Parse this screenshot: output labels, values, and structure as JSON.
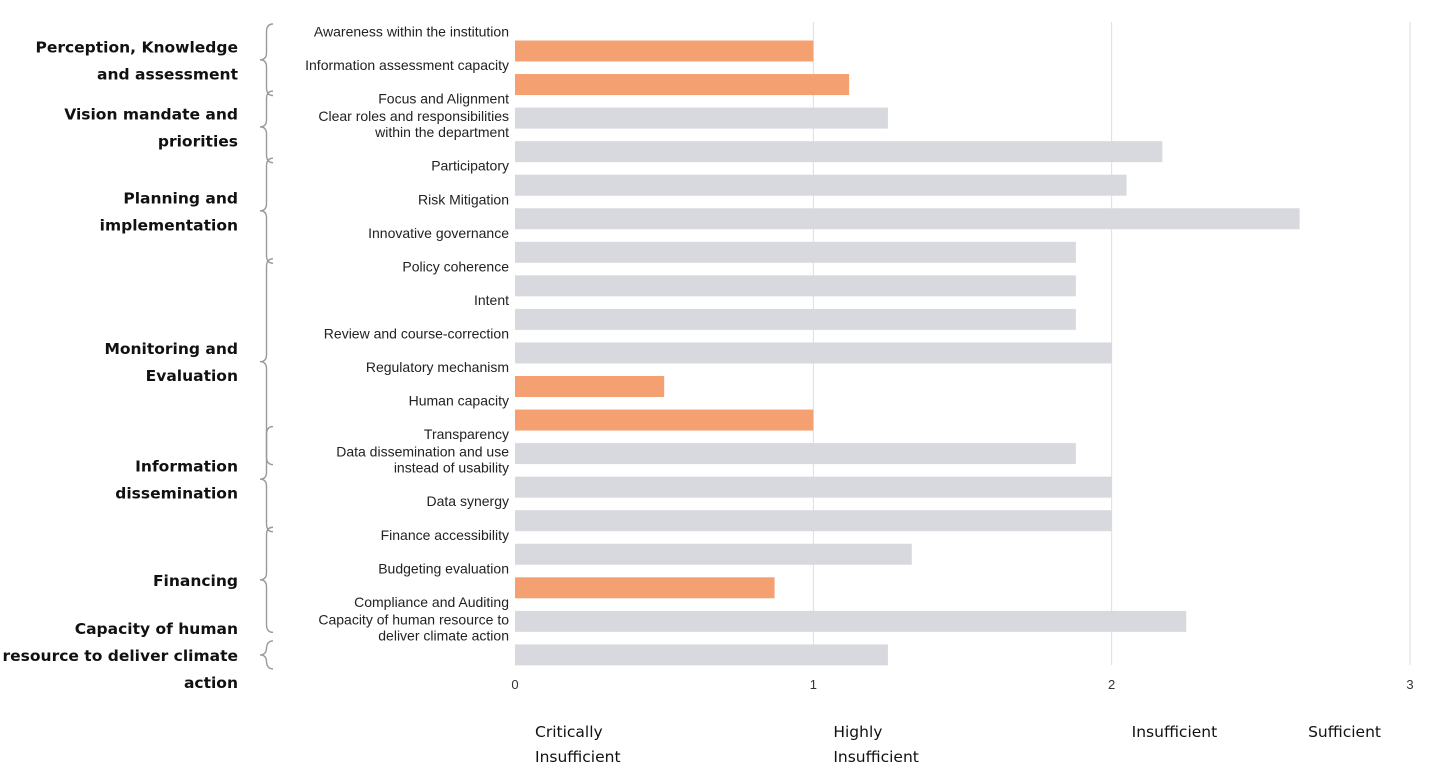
{
  "chart_data": {
    "type": "bar",
    "orientation": "horizontal",
    "xlim": [
      0,
      3
    ],
    "x_ticks": [
      "0",
      "1",
      "2",
      "3"
    ],
    "grid": "vertical",
    "colors": {
      "highlight": "#f4a070",
      "normal": "#d8d9de",
      "gridline": "#dddddd",
      "brace": "#9a9a9a"
    },
    "groups": [
      {
        "label": [
          "Perception, Knowledge",
          "and assessment"
        ],
        "first": 0,
        "last": 1
      },
      {
        "label": [
          "Vision mandate and",
          "priorities"
        ],
        "first": 2,
        "last": 3
      },
      {
        "label": [
          "Planning and",
          "implementation"
        ],
        "first": 4,
        "last": 6
      },
      {
        "label": [
          "Monitoring and",
          "Evaluation"
        ],
        "first": 7,
        "last": 12
      },
      {
        "label": [
          "Information",
          "dissemination"
        ],
        "first": 12,
        "last": 14
      },
      {
        "label": [
          "Financing"
        ],
        "first": 15,
        "last": 17
      },
      {
        "label": [
          "Capacity of human",
          "resource to deliver climate",
          "action"
        ],
        "first": 18,
        "last": 18
      }
    ],
    "categories": [
      {
        "label": [
          "Awareness within the institution"
        ],
        "value": 1.0,
        "highlight": true
      },
      {
        "label": [
          "Information assessment capacity"
        ],
        "value": 1.12,
        "highlight": true
      },
      {
        "label": [
          "Focus and Alignment"
        ],
        "value": 1.25,
        "highlight": false
      },
      {
        "label": [
          "Clear roles and responsibilities",
          "within the department"
        ],
        "value": 2.17,
        "highlight": false
      },
      {
        "label": [
          "Participatory"
        ],
        "value": 2.05,
        "highlight": false
      },
      {
        "label": [
          "Risk Mitigation"
        ],
        "value": 2.63,
        "highlight": false
      },
      {
        "label": [
          "Innovative governance"
        ],
        "value": 1.88,
        "highlight": false
      },
      {
        "label": [
          "Policy coherence"
        ],
        "value": 1.88,
        "highlight": false
      },
      {
        "label": [
          "Intent"
        ],
        "value": 1.88,
        "highlight": false
      },
      {
        "label": [
          "Review and course-correction"
        ],
        "value": 2.0,
        "highlight": false
      },
      {
        "label": [
          "Regulatory mechanism"
        ],
        "value": 0.5,
        "highlight": true
      },
      {
        "label": [
          "Human capacity"
        ],
        "value": 1.0,
        "highlight": true
      },
      {
        "label": [
          "Transparency"
        ],
        "value": 1.88,
        "highlight": false
      },
      {
        "label": [
          "Data dissemination and use",
          "instead of usability"
        ],
        "value": 2.0,
        "highlight": false
      },
      {
        "label": [
          "Data synergy"
        ],
        "value": 2.0,
        "highlight": false
      },
      {
        "label": [
          "Finance accessibility"
        ],
        "value": 1.33,
        "highlight": false
      },
      {
        "label": [
          "Budgeting evaluation"
        ],
        "value": 0.87,
        "highlight": true
      },
      {
        "label": [
          "Compliance and Auditing"
        ],
        "value": 2.25,
        "highlight": false
      },
      {
        "label": [
          "Capacity of human resource to",
          "deliver climate action"
        ],
        "value": 1.25,
        "highlight": false
      }
    ],
    "scale_labels": [
      {
        "label": [
          "Critically",
          "Insufficient"
        ],
        "at": 0
      },
      {
        "label": [
          "Highly",
          "Insufficient"
        ],
        "at": 1
      },
      {
        "label": [
          "Insufficient"
        ],
        "at": 2
      },
      {
        "label": [
          "Sufficient"
        ],
        "at": 3
      }
    ]
  }
}
